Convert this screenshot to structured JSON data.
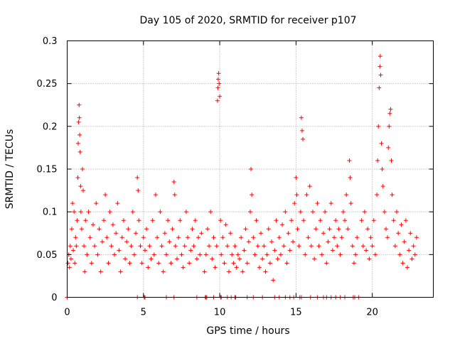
{
  "chart_data": {
    "type": "scatter",
    "title": "Day 105 of 2020, SRMTID for receiver p107",
    "xlabel": "GPS time / hours",
    "ylabel": "SRMTID / TECUs",
    "xlim": [
      0,
      24
    ],
    "ylim": [
      0,
      0.3
    ],
    "xticks": [
      0,
      5,
      10,
      15,
      20
    ],
    "xtick_labels": [
      "0",
      "5",
      "10",
      "15",
      "20"
    ],
    "yticks": [
      0,
      0.05,
      0.1,
      0.15,
      0.2,
      0.25,
      0.3
    ],
    "ytick_labels": [
      "0",
      "0.05",
      "0.1",
      "0.15",
      "0.2",
      "0.25",
      "0.3"
    ],
    "grid": true,
    "marker": "+",
    "series_color": "#ff0000",
    "series": [
      {
        "name": "SRMTID",
        "points": [
          [
            0.05,
            0.04
          ],
          [
            0.1,
            0.05
          ],
          [
            0.15,
            0.035
          ],
          [
            0.2,
            0.06
          ],
          [
            0.25,
            0.045
          ],
          [
            0.3,
            0.08
          ],
          [
            0.35,
            0.11
          ],
          [
            0.4,
            0.055
          ],
          [
            0.45,
            0.1
          ],
          [
            0.5,
            0.04
          ],
          [
            0.55,
            0.07
          ],
          [
            0.6,
            0.06
          ],
          [
            0.65,
            0.09
          ],
          [
            0.7,
            0.14
          ],
          [
            0.72,
            0.18
          ],
          [
            0.75,
            0.205
          ],
          [
            0.78,
            0.225
          ],
          [
            0.8,
            0.21
          ],
          [
            0.82,
            0.19
          ],
          [
            0.85,
            0.17
          ],
          [
            0.88,
            0.13
          ],
          [
            0.9,
            0.1
          ],
          [
            0.95,
            0.08
          ],
          [
            1.0,
            0.15
          ],
          [
            1.05,
            0.125
          ],
          [
            1.1,
            0.06
          ],
          [
            1.15,
            0.03
          ],
          [
            1.2,
            0.09
          ],
          [
            1.3,
            0.05
          ],
          [
            1.4,
            0.1
          ],
          [
            1.5,
            0.07
          ],
          [
            1.6,
            0.04
          ],
          [
            1.7,
            0.085
          ],
          [
            1.8,
            0.06
          ],
          [
            1.9,
            0.11
          ],
          [
            2.0,
            0.05
          ],
          [
            2.1,
            0.08
          ],
          [
            2.2,
            0.03
          ],
          [
            2.3,
            0.065
          ],
          [
            2.4,
            0.09
          ],
          [
            2.5,
            0.12
          ],
          [
            2.6,
            0.07
          ],
          [
            2.7,
            0.04
          ],
          [
            2.8,
            0.1
          ],
          [
            2.9,
            0.06
          ],
          [
            3.0,
            0.085
          ],
          [
            3.1,
            0.05
          ],
          [
            3.2,
            0.075
          ],
          [
            3.3,
            0.11
          ],
          [
            3.4,
            0.055
          ],
          [
            3.5,
            0.03
          ],
          [
            3.6,
            0.07
          ],
          [
            3.7,
            0.09
          ],
          [
            3.8,
            0.045
          ],
          [
            3.9,
            0.065
          ],
          [
            4.0,
            0.08
          ],
          [
            4.1,
            0.04
          ],
          [
            4.2,
            0.06
          ],
          [
            4.3,
            0.1
          ],
          [
            4.4,
            0.05
          ],
          [
            4.5,
            0.075
          ],
          [
            4.6,
            0.14
          ],
          [
            4.65,
            0.125
          ],
          [
            4.7,
            0.09
          ],
          [
            4.8,
            0.06
          ],
          [
            4.9,
            0.04
          ],
          [
            5.0,
            0.07
          ],
          [
            5.1,
            0.055
          ],
          [
            5.2,
            0.08
          ],
          [
            5.3,
            0.035
          ],
          [
            5.4,
            0.06
          ],
          [
            5.5,
            0.045
          ],
          [
            5.6,
            0.09
          ],
          [
            5.7,
            0.05
          ],
          [
            5.8,
            0.12
          ],
          [
            5.9,
            0.07
          ],
          [
            6.0,
            0.04
          ],
          [
            6.1,
            0.1
          ],
          [
            6.2,
            0.06
          ],
          [
            6.3,
            0.03
          ],
          [
            6.4,
            0.075
          ],
          [
            6.5,
            0.05
          ],
          [
            6.6,
            0.09
          ],
          [
            6.7,
            0.065
          ],
          [
            6.8,
            0.04
          ],
          [
            6.9,
            0.08
          ],
          [
            7.0,
            0.135
          ],
          [
            7.05,
            0.12
          ],
          [
            7.1,
            0.06
          ],
          [
            7.2,
            0.045
          ],
          [
            7.3,
            0.07
          ],
          [
            7.4,
            0.09
          ],
          [
            7.5,
            0.05
          ],
          [
            7.6,
            0.035
          ],
          [
            7.7,
            0.06
          ],
          [
            7.8,
            0.1
          ],
          [
            7.9,
            0.07
          ],
          [
            8.0,
            0.04
          ],
          [
            8.1,
            0.055
          ],
          [
            8.2,
            0.08
          ],
          [
            8.3,
            0.06
          ],
          [
            8.4,
            0.09
          ],
          [
            8.5,
            0.045
          ],
          [
            8.6,
            0.07
          ],
          [
            8.7,
            0.05
          ],
          [
            8.8,
            0.075
          ],
          [
            9.0,
            0.03
          ],
          [
            9.1,
            0.05
          ],
          [
            9.2,
            0.08
          ],
          [
            9.3,
            0.06
          ],
          [
            9.4,
            0.1
          ],
          [
            9.5,
            0.045
          ],
          [
            9.6,
            0.07
          ],
          [
            9.7,
            0.035
          ],
          [
            9.8,
            0.06
          ],
          [
            9.85,
            0.23
          ],
          [
            9.88,
            0.245
          ],
          [
            9.9,
            0.255
          ],
          [
            9.93,
            0.262
          ],
          [
            9.96,
            0.25
          ],
          [
            10.0,
            0.235
          ],
          [
            10.05,
            0.09
          ],
          [
            10.1,
            0.05
          ],
          [
            10.2,
            0.07
          ],
          [
            10.3,
            0.04
          ],
          [
            10.4,
            0.085
          ],
          [
            10.5,
            0.06
          ],
          [
            10.6,
            0.03
          ],
          [
            10.7,
            0.075
          ],
          [
            10.8,
            0.05
          ],
          [
            10.9,
            0.04
          ],
          [
            11.0,
            0.06
          ],
          [
            11.1,
            0.035
          ],
          [
            11.2,
            0.05
          ],
          [
            11.3,
            0.045
          ],
          [
            11.4,
            0.07
          ],
          [
            11.5,
            0.03
          ],
          [
            11.6,
            0.055
          ],
          [
            11.7,
            0.08
          ],
          [
            11.8,
            0.04
          ],
          [
            11.9,
            0.065
          ],
          [
            12.0,
            0.1
          ],
          [
            12.05,
            0.15
          ],
          [
            12.1,
            0.12
          ],
          [
            12.2,
            0.07
          ],
          [
            12.3,
            0.05
          ],
          [
            12.4,
            0.09
          ],
          [
            12.5,
            0.06
          ],
          [
            12.6,
            0.035
          ],
          [
            12.7,
            0.075
          ],
          [
            12.8,
            0.045
          ],
          [
            12.9,
            0.06
          ],
          [
            13.0,
            0.03
          ],
          [
            13.1,
            0.05
          ],
          [
            13.2,
            0.08
          ],
          [
            13.3,
            0.04
          ],
          [
            13.4,
            0.065
          ],
          [
            13.5,
            0.02
          ],
          [
            13.6,
            0.055
          ],
          [
            13.7,
            0.09
          ],
          [
            13.8,
            0.045
          ],
          [
            13.9,
            0.07
          ],
          [
            14.0,
            0.05
          ],
          [
            14.1,
            0.085
          ],
          [
            14.2,
            0.06
          ],
          [
            14.3,
            0.1
          ],
          [
            14.4,
            0.04
          ],
          [
            14.5,
            0.075
          ],
          [
            14.6,
            0.055
          ],
          [
            14.7,
            0.09
          ],
          [
            14.8,
            0.065
          ],
          [
            14.9,
            0.11
          ],
          [
            15.0,
            0.14
          ],
          [
            15.05,
            0.12
          ],
          [
            15.1,
            0.08
          ],
          [
            15.2,
            0.06
          ],
          [
            15.3,
            0.1
          ],
          [
            15.35,
            0.21
          ],
          [
            15.4,
            0.195
          ],
          [
            15.45,
            0.185
          ],
          [
            15.5,
            0.09
          ],
          [
            15.6,
            0.05
          ],
          [
            15.7,
            0.12
          ],
          [
            15.8,
            0.07
          ],
          [
            15.9,
            0.13
          ],
          [
            16.0,
            0.06
          ],
          [
            16.1,
            0.1
          ],
          [
            16.2,
            0.045
          ],
          [
            16.3,
            0.08
          ],
          [
            16.4,
            0.11
          ],
          [
            16.5,
            0.06
          ],
          [
            16.6,
            0.09
          ],
          [
            16.7,
            0.05
          ],
          [
            16.8,
            0.075
          ],
          [
            16.9,
            0.1
          ],
          [
            17.0,
            0.04
          ],
          [
            17.1,
            0.065
          ],
          [
            17.2,
            0.08
          ],
          [
            17.3,
            0.11
          ],
          [
            17.4,
            0.055
          ],
          [
            17.5,
            0.07
          ],
          [
            17.6,
            0.09
          ],
          [
            17.7,
            0.06
          ],
          [
            17.8,
            0.08
          ],
          [
            17.9,
            0.05
          ],
          [
            18.0,
            0.07
          ],
          [
            18.1,
            0.1
          ],
          [
            18.2,
            0.09
          ],
          [
            18.3,
            0.12
          ],
          [
            18.4,
            0.08
          ],
          [
            18.5,
            0.16
          ],
          [
            18.55,
            0.14
          ],
          [
            18.6,
            0.11
          ],
          [
            18.7,
            0.06
          ],
          [
            18.8,
            0.04
          ],
          [
            18.9,
            0.05
          ],
          [
            19.0,
            0.07
          ],
          [
            19.3,
            0.09
          ],
          [
            19.4,
            0.06
          ],
          [
            19.5,
            0.1
          ],
          [
            19.6,
            0.055
          ],
          [
            19.7,
            0.08
          ],
          [
            19.8,
            0.045
          ],
          [
            19.9,
            0.07
          ],
          [
            20.0,
            0.06
          ],
          [
            20.1,
            0.09
          ],
          [
            20.2,
            0.05
          ],
          [
            20.3,
            0.12
          ],
          [
            20.35,
            0.16
          ],
          [
            20.4,
            0.2
          ],
          [
            20.45,
            0.245
          ],
          [
            20.5,
            0.27
          ],
          [
            20.52,
            0.282
          ],
          [
            20.55,
            0.26
          ],
          [
            20.6,
            0.18
          ],
          [
            20.65,
            0.15
          ],
          [
            20.7,
            0.13
          ],
          [
            20.8,
            0.1
          ],
          [
            20.9,
            0.08
          ],
          [
            21.0,
            0.07
          ],
          [
            21.05,
            0.175
          ],
          [
            21.1,
            0.2
          ],
          [
            21.15,
            0.215
          ],
          [
            21.2,
            0.22
          ],
          [
            21.25,
            0.16
          ],
          [
            21.3,
            0.12
          ],
          [
            21.4,
            0.09
          ],
          [
            21.5,
            0.06
          ],
          [
            21.6,
            0.1
          ],
          [
            21.7,
            0.075
          ],
          [
            21.8,
            0.05
          ],
          [
            21.9,
            0.085
          ],
          [
            22.0,
            0.04
          ],
          [
            22.1,
            0.065
          ],
          [
            22.2,
            0.09
          ],
          [
            22.3,
            0.035
          ],
          [
            22.4,
            0.055
          ],
          [
            22.5,
            0.075
          ],
          [
            22.6,
            0.045
          ],
          [
            22.7,
            0.06
          ],
          [
            22.8,
            0.05
          ],
          [
            22.9,
            0.07
          ]
        ],
        "zero_points": [
          0.0,
          4.6,
          5.05,
          5.1,
          6.5,
          7.0,
          8.5,
          9.05,
          9.1,
          9.15,
          9.6,
          10.05,
          10.1,
          10.5,
          10.75,
          11.0,
          11.05,
          11.8,
          12.2,
          12.8,
          13.6,
          13.9,
          14.3,
          14.6,
          14.85,
          15.25,
          15.35,
          15.95,
          16.4,
          16.8,
          17.0,
          17.3,
          17.6,
          17.9,
          18.2,
          18.75,
          18.85,
          19.1
        ]
      }
    ]
  }
}
